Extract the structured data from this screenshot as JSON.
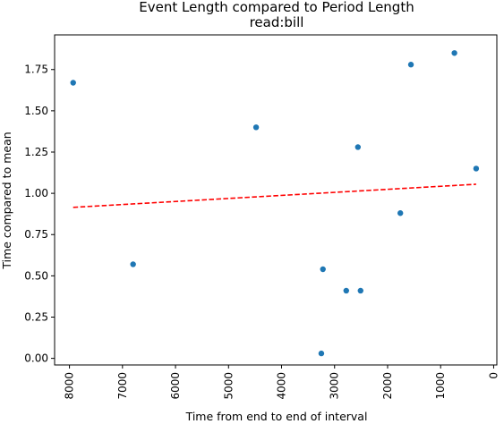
{
  "chart_data": {
    "type": "scatter",
    "title": "Event Length compared to Period Length",
    "subtitle": "read:bill",
    "xlabel": "Time from end to end of interval",
    "ylabel": "Time compared to mean",
    "x_inverted": true,
    "xlim": [
      8280,
      -60
    ],
    "ylim": [
      -0.04,
      1.96
    ],
    "x_ticks": [
      8000,
      7000,
      6000,
      5000,
      4000,
      3000,
      2000,
      1000,
      0
    ],
    "x_tick_labels": [
      "8000",
      "7000",
      "6000",
      "5000",
      "4000",
      "3000",
      "2000",
      "1000",
      "0"
    ],
    "y_ticks": [
      0.0,
      0.25,
      0.5,
      0.75,
      1.0,
      1.25,
      1.5,
      1.75
    ],
    "y_tick_labels": [
      "0.00",
      "0.25",
      "0.50",
      "0.75",
      "1.00",
      "1.25",
      "1.50",
      "1.75"
    ],
    "grid": false,
    "series": [
      {
        "kind": "points",
        "color": "#1f77b4",
        "x": [
          7930,
          6800,
          4480,
          3250,
          3220,
          2780,
          2560,
          2510,
          1760,
          1560,
          740,
          330
        ],
        "y": [
          1.67,
          0.57,
          1.4,
          0.03,
          0.54,
          0.41,
          1.28,
          0.41,
          0.88,
          1.78,
          1.85,
          1.15
        ]
      },
      {
        "kind": "trendline",
        "color": "#ff0000",
        "dashed": true,
        "x": [
          7930,
          330
        ],
        "y": [
          0.915,
          1.055
        ]
      }
    ]
  }
}
